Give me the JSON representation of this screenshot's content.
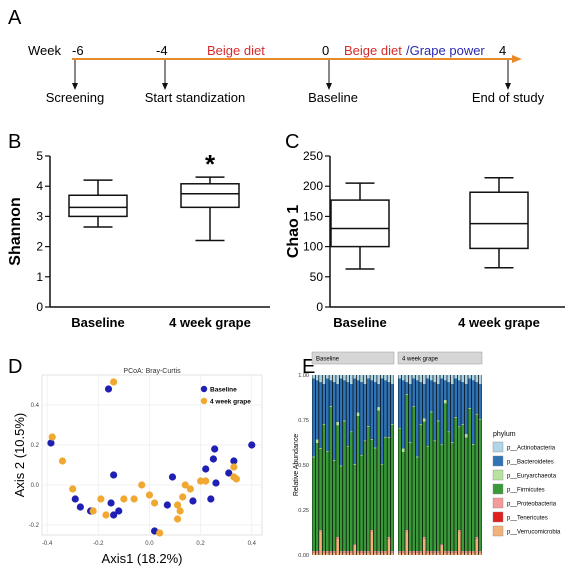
{
  "panels": {
    "A": "A",
    "B": "B",
    "C": "C",
    "D": "D",
    "E": "E"
  },
  "timeline": {
    "week_label": "Week",
    "ticks": [
      {
        "week": "-6",
        "label": "Screening"
      },
      {
        "week": "-4",
        "label": "Start standization"
      },
      {
        "week": "0",
        "label": "Baseline"
      },
      {
        "week": "4",
        "label": "End of study"
      }
    ],
    "segment1": "Beige diet",
    "segment2_a": "Beige diet",
    "segment2_b": "/Grape power",
    "colors": {
      "line": "#e8892a",
      "beige": "#d42a2a",
      "grape": "#2a2ab0"
    }
  },
  "chart_data": [
    {
      "type": "box",
      "ylabel": "Shannon",
      "ylim": [
        0,
        5
      ],
      "yticks": [
        "0",
        "1",
        "2",
        "3",
        "4",
        "5"
      ],
      "categories": [
        "Baseline",
        "4 week grape"
      ],
      "boxes": [
        {
          "min": 2.65,
          "q1": 3.0,
          "median": 3.3,
          "q3": 3.7,
          "max": 4.2
        },
        {
          "min": 2.2,
          "q1": 3.3,
          "median": 3.75,
          "q3": 4.08,
          "max": 4.3
        }
      ],
      "annotation": "*"
    },
    {
      "type": "box",
      "ylabel": "Chao 1",
      "ylim": [
        0,
        250
      ],
      "yticks": [
        "0",
        "50",
        "100",
        "150",
        "200",
        "250"
      ],
      "categories": [
        "Baseline",
        "4 week grape"
      ],
      "boxes": [
        {
          "min": 63,
          "q1": 100,
          "median": 130,
          "q3": 177,
          "max": 205
        },
        {
          "min": 65,
          "q1": 97,
          "median": 138,
          "q3": 190,
          "max": 214
        }
      ]
    },
    {
      "type": "scatter",
      "title": "PCoA: Bray-Curtis",
      "xlabel": "Axis1 (18.2%)",
      "ylabel": "Axis 2 (10.5%)",
      "xlim": [
        -0.42,
        0.44
      ],
      "ylim": [
        -0.25,
        0.55
      ],
      "xticks": [
        "-0.4",
        "-0.2",
        "0.0",
        "0.2",
        "0.4"
      ],
      "yticks": [
        "-0.2",
        "0.0",
        "0.2",
        "0.4"
      ],
      "legend_position": "top-right",
      "series": [
        {
          "name": "Baseline",
          "color": "#1f1fb4",
          "points": [
            [
              -0.385,
              0.21
            ],
            [
              -0.16,
              0.48
            ],
            [
              -0.29,
              -0.07
            ],
            [
              -0.27,
              -0.11
            ],
            [
              -0.23,
              -0.13
            ],
            [
              -0.15,
              -0.09
            ],
            [
              -0.14,
              0.05
            ],
            [
              -0.12,
              -0.13
            ],
            [
              -0.14,
              -0.15
            ],
            [
              0.02,
              -0.23
            ],
            [
              0.09,
              0.04
            ],
            [
              0.07,
              -0.1
            ],
            [
              0.17,
              -0.08
            ],
            [
              0.22,
              0.08
            ],
            [
              0.24,
              -0.07
            ],
            [
              0.255,
              0.18
            ],
            [
              0.25,
              0.13
            ],
            [
              0.31,
              0.06
            ],
            [
              0.4,
              0.2
            ],
            [
              0.33,
              0.12
            ],
            [
              0.26,
              0.01
            ]
          ]
        },
        {
          "name": "4 week grape",
          "color": "#f0a830",
          "points": [
            [
              -0.38,
              0.24
            ],
            [
              -0.14,
              0.515
            ],
            [
              -0.34,
              0.12
            ],
            [
              -0.3,
              -0.02
            ],
            [
              -0.22,
              -0.13
            ],
            [
              -0.19,
              -0.07
            ],
            [
              -0.17,
              -0.15
            ],
            [
              -0.1,
              -0.07
            ],
            [
              -0.06,
              -0.07
            ],
            [
              -0.03,
              0.0
            ],
            [
              0.0,
              -0.05
            ],
            [
              0.02,
              -0.09
            ],
            [
              0.04,
              -0.24
            ],
            [
              0.11,
              -0.17
            ],
            [
              0.12,
              -0.13
            ],
            [
              0.13,
              -0.06
            ],
            [
              0.22,
              0.02
            ],
            [
              0.16,
              -0.02
            ],
            [
              0.11,
              -0.1
            ],
            [
              0.33,
              0.09
            ],
            [
              0.33,
              0.04
            ],
            [
              0.34,
              0.03
            ],
            [
              0.14,
              0.0
            ],
            [
              0.2,
              0.02
            ]
          ]
        }
      ]
    },
    {
      "type": "stacked_bar",
      "ylabel": "Relative Abundance",
      "ylim": [
        0,
        1
      ],
      "yticks": [
        "0.00",
        "0.25",
        "0.50",
        "0.75",
        "1.00"
      ],
      "facets": [
        "Baseline",
        "4 week grape"
      ],
      "legend_title": "phylum",
      "categories_phylum": [
        "p__Actinobacteria",
        "p__Bacteroidetes",
        "p__Euryarchaeota",
        "p__Firmicutes",
        "p__Proteobacteria",
        "p__Tenericutes",
        "p__Verrucomicrobia"
      ],
      "phylum_colors": [
        "#aed6e6",
        "#2f73b4",
        "#b9e2a0",
        "#3a9a3a",
        "#f49a9a",
        "#e01f1f",
        "#f2b27a"
      ],
      "samples_per_facet": 24,
      "firmicutes_by_sample": {
        "Baseline": [
          0.52,
          0.6,
          0.45,
          0.7,
          0.55,
          0.8,
          0.5,
          0.62,
          0.47,
          0.72,
          0.58,
          0.66,
          0.44,
          0.75,
          0.53,
          0.61,
          0.69,
          0.5,
          0.57,
          0.78,
          0.48,
          0.63,
          0.55,
          0.7
        ],
        "4 week grape": [
          0.68,
          0.55,
          0.75,
          0.6,
          0.8,
          0.52,
          0.7,
          0.64,
          0.58,
          0.77,
          0.61,
          0.72,
          0.55,
          0.82,
          0.66,
          0.6,
          0.74,
          0.57,
          0.7,
          0.63,
          0.79,
          0.59,
          0.68,
          0.73
        ]
      }
    }
  ]
}
